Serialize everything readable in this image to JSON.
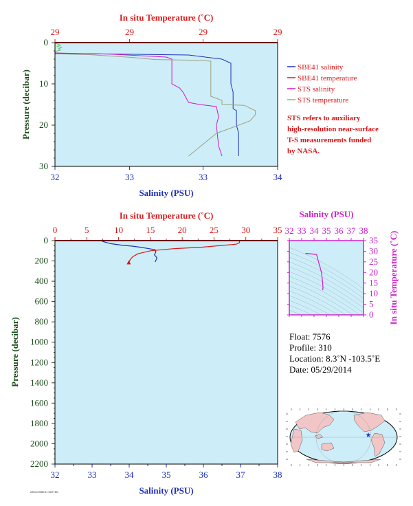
{
  "colors": {
    "salinity": "#1f2fbf",
    "temperature": "#d81818",
    "sts_salinity": "#d018c8",
    "sts_temperature": "#66cc66",
    "plot_bg": "#cdeef8",
    "pressure_label": "#1a4a1a",
    "magenta_axis": "#cc22cc"
  },
  "chart_data": [
    {
      "type": "line",
      "id": "top",
      "title": "",
      "top_xlabel": "In situ Temperature (˚C)",
      "top_ticks": [
        "29",
        "29",
        "29",
        "29"
      ],
      "top_ticks_positions_in_salinity_units": [
        32,
        33,
        34,
        35
      ],
      "xlabel": "Salinity (PSU)",
      "ylabel": "Pressure (decibar)",
      "xlim": [
        32,
        34
      ],
      "ylim": [
        30,
        0
      ],
      "x_ticks": [
        "32",
        "33",
        "33",
        "34"
      ],
      "x_ticks_positions": [
        32,
        32.67,
        33.33,
        34
      ],
      "y_ticks": [
        "0",
        "10",
        "20",
        "30"
      ],
      "y_ticks_positions": [
        0,
        10,
        20,
        30
      ],
      "legend": [
        {
          "name": "SBE41 salinity",
          "color_key": "salinity"
        },
        {
          "name": "SBE41 temperature",
          "color_key": "temperature"
        },
        {
          "name": "STS salinity",
          "color_key": "sts_salinity"
        },
        {
          "name": "STS temperature",
          "color_key": "sts_temperature"
        }
      ],
      "note": [
        "STS refers to auxiliary",
        "high-resolution near-surface",
        "T-S measurements funded",
        "by NASA."
      ],
      "series": [
        {
          "name": "SBE41 salinity",
          "color_key": "salinity",
          "x": [
            32.0,
            32.6,
            33.2,
            33.35,
            33.5,
            33.58,
            33.58,
            33.6,
            33.6,
            33.63,
            33.63,
            33.65,
            33.65
          ],
          "y": [
            2.6,
            2.8,
            3.0,
            3.5,
            4.0,
            5.0,
            10.0,
            12.0,
            16.0,
            16.5,
            20.0,
            22.0,
            27.5
          ]
        },
        {
          "name": "SBE41 temperature",
          "color_key": "temperature",
          "x": [
            32.0,
            34.0
          ],
          "y": [
            0.0,
            0.0
          ]
        },
        {
          "name": "STS salinity",
          "color_key": "sts_salinity",
          "x": [
            32.0,
            32.5,
            33.0,
            33.05,
            33.05,
            33.12,
            33.15,
            33.2,
            33.3,
            33.45,
            33.47,
            33.45,
            33.47,
            33.5
          ],
          "y": [
            2.5,
            2.8,
            3.5,
            4.0,
            10.0,
            11.0,
            12.0,
            14.5,
            15.0,
            15.5,
            18.0,
            20.0,
            25.0,
            27.5
          ]
        },
        {
          "name": "STS temperature",
          "color_key": "sts_temperature",
          "x": [
            32.0,
            32.02,
            32.05,
            32.02,
            32.06,
            32.03,
            32.05,
            32.01,
            32.0
          ],
          "y": [
            0.1,
            0.3,
            0.6,
            0.9,
            1.2,
            1.5,
            1.8,
            2.1,
            2.4
          ]
        },
        {
          "name": "STS temperature (subsurface)",
          "color_key": "grey",
          "x": [
            32.0,
            32.3,
            32.7,
            32.9,
            33.3,
            33.4,
            33.4,
            33.5,
            33.5,
            33.7,
            33.8,
            33.8,
            33.75,
            33.6,
            33.45,
            33.2
          ],
          "y": [
            2.7,
            2.9,
            3.6,
            4.1,
            4.3,
            4.5,
            13.0,
            14.0,
            15.0,
            15.2,
            16.5,
            17.5,
            19.0,
            20.5,
            22.0,
            27.5
          ]
        }
      ]
    },
    {
      "type": "line",
      "id": "main",
      "top_xlabel": "In situ Temperature (˚C)",
      "top_ticks": [
        "0",
        "5",
        "10",
        "15",
        "20",
        "25",
        "30",
        "35"
      ],
      "top_lim": [
        0,
        35
      ],
      "xlabel": "Salinity (PSU)",
      "ylabel": "Pressure (decibar)",
      "xlim": [
        32,
        38
      ],
      "ylim": [
        2200,
        0
      ],
      "x_ticks": [
        "32",
        "33",
        "34",
        "35",
        "36",
        "37",
        "38"
      ],
      "y_ticks": [
        "0",
        "200",
        "400",
        "600",
        "800",
        "1000",
        "1200",
        "1400",
        "1600",
        "1800",
        "2000",
        "2200"
      ],
      "series": [
        {
          "name": "Salinity",
          "color_key": "salinity",
          "x": [
            33.25,
            33.3,
            33.5,
            33.8,
            34.1,
            34.3,
            34.55,
            34.7,
            34.72,
            34.68,
            34.75,
            34.7
          ],
          "y": [
            0,
            10,
            30,
            45,
            55,
            65,
            80,
            90,
            110,
            140,
            170,
            210
          ]
        },
        {
          "name": "Temperature",
          "color_key": "temperature",
          "x_temp": [
            29.0,
            29.0,
            28.5,
            23.0,
            18.5,
            15.0,
            13.0,
            12.2,
            11.8,
            11.6
          ],
          "y": [
            0,
            20,
            35,
            65,
            80,
            100,
            130,
            160,
            190,
            220
          ]
        }
      ]
    },
    {
      "type": "line",
      "id": "ts_inset",
      "top_xlabel": "Salinity (PSU)",
      "x_ticks": [
        "32",
        "33",
        "34",
        "35",
        "36",
        "37",
        "38"
      ],
      "xlim": [
        32,
        38
      ],
      "ylabel": "In situ Temperature (˚C)",
      "y_ticks": [
        "0",
        "5",
        "10",
        "15",
        "20",
        "25",
        "30",
        "35"
      ],
      "ylim": [
        0,
        35
      ],
      "series": [
        {
          "name": "T-S",
          "color_key": "sts_salinity",
          "x": [
            33.3,
            34.2,
            34.6,
            34.7,
            34.72,
            34.7
          ],
          "y": [
            29.0,
            28.5,
            20.0,
            15.0,
            13.0,
            11.6
          ]
        }
      ]
    }
  ],
  "info": {
    "float": "Float:  7576",
    "profile": "Profile:  310",
    "location": "Location:  8.3˚N  -103.5˚E",
    "date": "Date:  05/29/2014"
  },
  "map": {
    "marker_icon": "star-icon"
  },
  "footer": {
    "small_text": "ARGO/SBE41 EDITED"
  }
}
